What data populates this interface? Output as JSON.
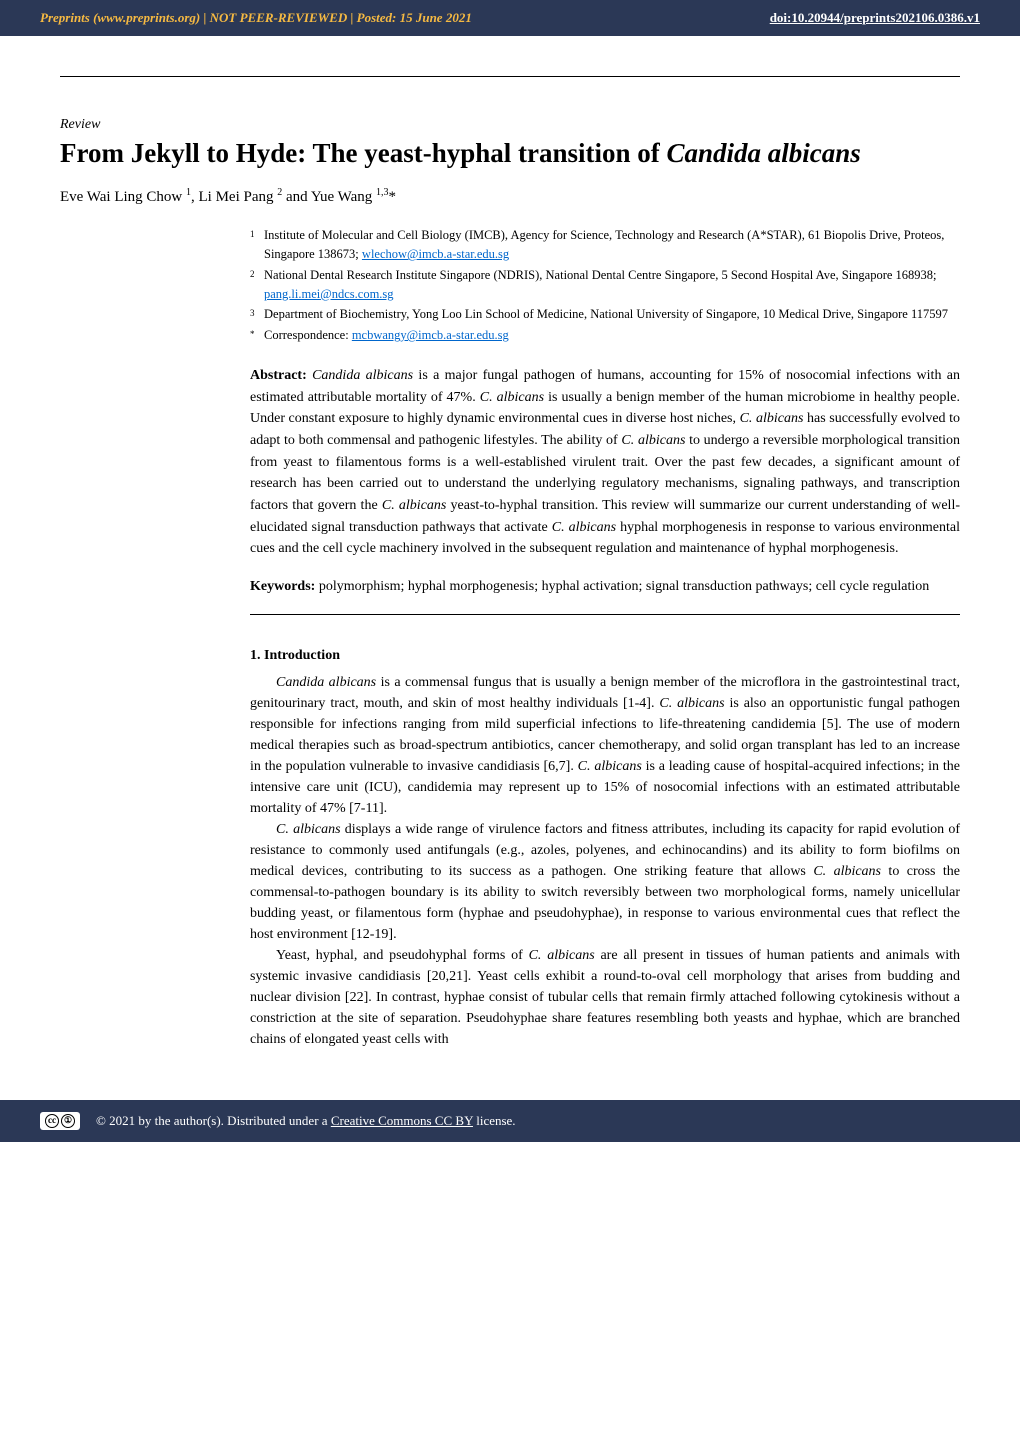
{
  "header": {
    "site": "Preprints",
    "url": "(www.preprints.org)",
    "sep1": "  |  ",
    "status": "NOT PEER-REVIEWED",
    "sep2": "  |  ",
    "posted": "Posted: 15 June 2021",
    "doi": "doi:10.20944/preprints202106.0386.v1"
  },
  "article": {
    "type": "Review",
    "title_plain": "From Jekyll to Hyde: The yeast-hyphal transition of ",
    "title_ital": "Candida albicans",
    "authors_text": "Eve Wai Ling Chow ",
    "authors_sup1": "1",
    "authors_sep1": ", Li Mei Pang ",
    "authors_sup2": "2",
    "authors_sep2": " and Yue Wang ",
    "authors_sup3": "1,3",
    "authors_star": "*"
  },
  "affiliations": [
    {
      "num": "1",
      "text": "Institute of Molecular and Cell Biology (IMCB), Agency for Science, Technology and Research (A*STAR), 61 Biopolis Drive, Proteos, Singapore 138673; ",
      "link": "wlechow@imcb.a-star.edu.sg"
    },
    {
      "num": "2",
      "text": "National Dental Research Institute Singapore (NDRIS), National Dental Centre Singapore, 5 Second Hospital Ave, Singapore 168938; ",
      "link": "pang.li.mei@ndcs.com.sg"
    },
    {
      "num": "3",
      "text": "Department of Biochemistry, Yong Loo Lin School of Medicine, National University of Singapore, 10 Medical Drive, Singapore 117597",
      "link": ""
    },
    {
      "num": "*",
      "text": "Correspondence: ",
      "link": "mcbwangy@imcb.a-star.edu.sg"
    }
  ],
  "abstract": {
    "label": "Abstract: ",
    "p1a": "Candida albicans",
    "p1b": " is a major fungal pathogen of humans, accounting for 15% of nosocomial infections with an estimated attributable mortality of 47%. ",
    "p1c": "C. albicans",
    "p1d": " is usually a benign member of the human microbiome in healthy people. Under constant exposure to highly dynamic environmental cues in diverse host niches, ",
    "p1e": "C. albicans",
    "p1f": " has successfully evolved to adapt to both commensal and pathogenic lifestyles. The ability of ",
    "p1g": "C. albicans",
    "p1h": " to undergo a reversible morphological transition from yeast to filamentous forms is a well-established virulent trait. Over the past few decades, a significant amount of research has been carried out to understand the underlying regulatory mechanisms, signaling pathways, and transcription factors that govern the ",
    "p1i": "C. albicans",
    "p1j": " yeast-to-hyphal transition. This review will summarize our current understanding of well-elucidated signal transduction pathways that activate ",
    "p1k": "C. albicans",
    "p1l": " hyphal morphogenesis in response to various environmental cues and the cell cycle machinery involved in the subsequent regulation and maintenance of hyphal morphogenesis."
  },
  "keywords": {
    "label": "Keywords: ",
    "text": "polymorphism; hyphal morphogenesis; hyphal activation; signal transduction pathways; cell cycle regulation"
  },
  "body": {
    "section1_heading": "1. Introduction",
    "para1": {
      "a": "Candida albicans",
      "b": " is a commensal fungus that is usually a benign member of the microflora in the gastrointestinal tract, genitourinary tract, mouth, and skin of most healthy individuals [1-4]. ",
      "c": "C. albicans",
      "d": " is also an opportunistic fungal pathogen responsible for infections ranging from mild superficial infections to life-threatening candidemia [5]. The use of modern medical therapies such as broad-spectrum antibiotics, cancer chemotherapy, and solid organ transplant has led to an increase in the population vulnerable to invasive candidiasis [6,7]. ",
      "e": "C. albicans",
      "f": " is a leading cause of hospital-acquired infections; in the intensive care unit (ICU), candidemia may represent up to 15% of nosocomial infections with an estimated attributable mortality of 47% [7-11]."
    },
    "para2": {
      "a": "C. albicans",
      "b": " displays a wide range of virulence factors and fitness attributes, including its capacity for rapid evolution of resistance to commonly used antifungals (e.g., azoles, polyenes, and echinocandins) and its ability to form biofilms on medical devices, contributing to its success as a pathogen. One striking feature that allows ",
      "c": "C. albicans",
      "d": " to cross the commensal-to-pathogen boundary is its ability to switch reversibly between two morphological forms, namely unicellular budding yeast, or filamentous form (hyphae and pseudohyphae), in response to various environmental cues that reflect the host environment [12-19]."
    },
    "para3": {
      "a": "Yeast, hyphal, and pseudohyphal forms of ",
      "b": "C. albicans",
      "c": " are all present in tissues of human patients and animals with systemic invasive candidiasis [20,21]. Yeast cells exhibit a round-to-oval cell morphology that arises from budding and nuclear division [22]. In contrast, hyphae consist of tubular cells that remain firmly attached following cytokinesis without a constriction at the site of separation. Pseudohyphae share features resembling both yeasts and hyphae, which are branched chains of elongated yeast cells with"
    }
  },
  "footer": {
    "copyright": "© 2021 by the author(s). Distributed under a ",
    "license_link": "Creative Commons CC BY",
    "license_tail": " license."
  },
  "colors": {
    "header_bg": "#2b3856",
    "header_accent": "#f5b942",
    "link": "#0066cc",
    "text": "#000000",
    "bg": "#ffffff"
  }
}
